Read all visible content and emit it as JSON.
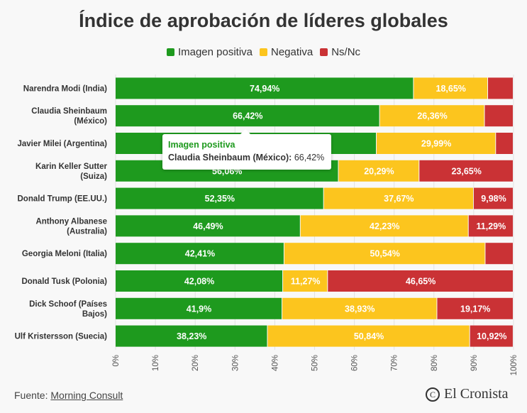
{
  "header": {
    "title": "Índice de aprobación de líderes globales"
  },
  "colors": {
    "positive": "#1e9a1e",
    "negative": "#fcc51e",
    "nsnc": "#ca3235"
  },
  "legend": [
    {
      "label": "Imagen positiva",
      "color": "#1e9a1e"
    },
    {
      "label": "Negativa",
      "color": "#fcc51e"
    },
    {
      "label": "Ns/Nc",
      "color": "#ca3235"
    }
  ],
  "chart_data": {
    "type": "bar",
    "orientation": "horizontal-stacked",
    "title": "Índice de aprobación de líderes globales",
    "categories": [
      "Narendra Modi (India)",
      "Claudia Sheinbaum (México)",
      "Javier Milei (Argentina)",
      "Karin Keller Sutter (Suiza)",
      "Donald Trump (EE.UU.)",
      "Anthony Albanese (Australia)",
      "Georgia Meloni (Italia)",
      "Donald Tusk (Polonia)",
      "Dick Schoof (Países Bajos)",
      "Ulf Kristersson (Suecia)"
    ],
    "category_lines": [
      [
        "Narendra Modi (India)"
      ],
      [
        "Claudia Sheinbaum",
        "(México)"
      ],
      [
        "Javier Milei (Argentina)"
      ],
      [
        "Karin Keller Sutter",
        "(Suiza)"
      ],
      [
        "Donald Trump (EE.UU.)"
      ],
      [
        "Anthony Albanese",
        "(Australia)"
      ],
      [
        "Georgia Meloni (Italia)"
      ],
      [
        "Donald Tusk (Polonia)"
      ],
      [
        "Dick Schoof (Países",
        "Bajos)"
      ],
      [
        "Ulf Kristersson (Suecia)"
      ]
    ],
    "series": [
      {
        "name": "Imagen positiva",
        "values": [
          74.94,
          66.42,
          65.6,
          56.06,
          52.35,
          46.49,
          42.41,
          42.08,
          41.9,
          38.23
        ],
        "labels": [
          "74,94%",
          "66,42%",
          "",
          "56,06%",
          "52,35%",
          "46,49%",
          "42,41%",
          "42,08%",
          "41,9%",
          "38,23%"
        ]
      },
      {
        "name": "Negativa",
        "values": [
          18.65,
          26.36,
          29.99,
          20.29,
          37.67,
          42.23,
          50.54,
          11.27,
          38.93,
          50.84
        ],
        "labels": [
          "18,65%",
          "26,36%",
          "29,99%",
          "20,29%",
          "37,67%",
          "42,23%",
          "50,54%",
          "11,27%",
          "38,93%",
          "50,84%"
        ]
      },
      {
        "name": "Ns/Nc",
        "values": [
          6.41,
          7.22,
          4.41,
          23.65,
          9.98,
          11.29,
          7.05,
          46.65,
          19.17,
          10.92
        ],
        "labels": [
          "",
          "",
          "",
          "23,65%",
          "9,98%",
          "11,29%",
          "",
          "46,65%",
          "19,17%",
          "10,92%"
        ]
      }
    ],
    "xlim": [
      0,
      100
    ],
    "xticks": [
      "0%",
      "10%",
      "20%",
      "30%",
      "40%",
      "50%",
      "60%",
      "70%",
      "80%",
      "90%",
      "100%"
    ],
    "grid": true,
    "legend_position": "top-center"
  },
  "tooltip": {
    "series": "Imagen positiva",
    "name": "Claudia Sheinbaum (México):",
    "value": "66,42%"
  },
  "footer": {
    "source_label": "Fuente:",
    "source_name": "Morning Consult"
  },
  "logo": {
    "text": "El Cronista",
    "mark": "C"
  }
}
